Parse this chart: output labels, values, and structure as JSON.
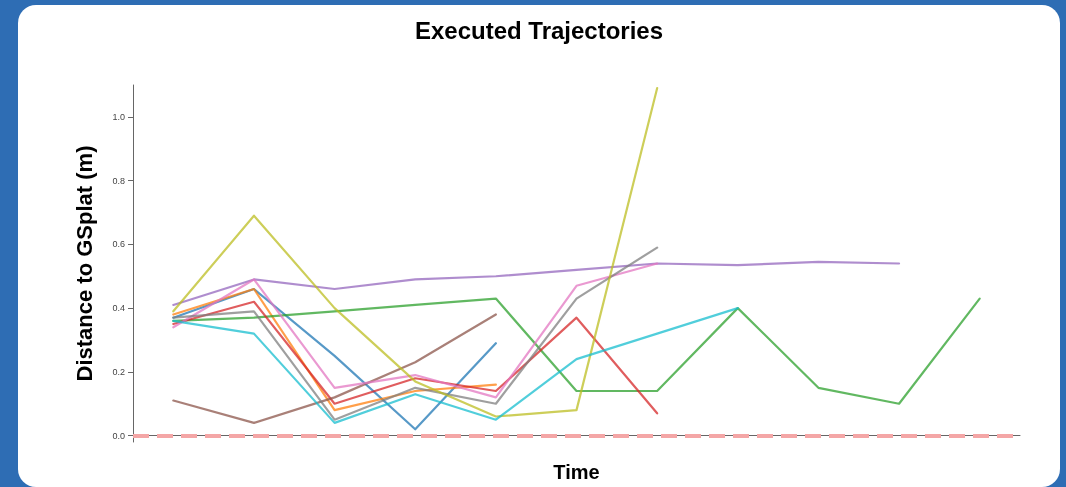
{
  "chart_data": {
    "type": "line",
    "title": "Executed Trajectories",
    "xlabel": "Time",
    "ylabel": "Distance to GSplat (m)",
    "categories": [
      null,
      null,
      null,
      null,
      null,
      null,
      null,
      null,
      null,
      null,
      null
    ],
    "series": [
      {
        "color": "#1f77b4",
        "values": [
          0.37,
          0.46,
          0.25,
          0.02,
          0.29,
          null,
          null,
          null,
          null,
          null,
          null
        ]
      },
      {
        "color": "#ff7f0e",
        "values": [
          0.38,
          0.46,
          0.08,
          0.14,
          0.16,
          null,
          null,
          null,
          null,
          null,
          null
        ]
      },
      {
        "color": "#2ca02c",
        "values": [
          0.36,
          0.37,
          0.39,
          0.41,
          0.43,
          0.14,
          0.14,
          0.4,
          0.15,
          0.1,
          0.43
        ]
      },
      {
        "color": "#d62728",
        "values": [
          0.35,
          0.42,
          0.1,
          0.18,
          0.14,
          0.37,
          0.07,
          null,
          null,
          null,
          null
        ]
      },
      {
        "color": "#9467bd",
        "values": [
          0.41,
          0.49,
          0.46,
          0.49,
          0.5,
          0.52,
          0.54,
          0.535,
          0.545,
          0.54,
          null
        ]
      },
      {
        "color": "#8c564b",
        "values": [
          0.11,
          0.04,
          0.12,
          0.23,
          0.38,
          null,
          null,
          null,
          null,
          null,
          null
        ]
      },
      {
        "color": "#e377c2",
        "values": [
          0.34,
          0.49,
          0.15,
          0.19,
          0.12,
          0.47,
          0.54,
          null,
          null,
          null,
          null
        ]
      },
      {
        "color": "#7f7f7f",
        "values": [
          0.37,
          0.39,
          0.05,
          0.15,
          0.1,
          0.43,
          0.59,
          null,
          null,
          null,
          null
        ]
      },
      {
        "color": "#bcbd22",
        "values": [
          0.39,
          0.69,
          0.4,
          0.17,
          0.06,
          0.08,
          1.09,
          null,
          null,
          null,
          null
        ]
      },
      {
        "color": "#17becf",
        "values": [
          0.36,
          0.32,
          0.04,
          0.13,
          0.05,
          0.24,
          0.32,
          0.4,
          null,
          null,
          null
        ]
      }
    ],
    "ylim": [
      -0.02,
      1.1
    ],
    "yticks": [
      {
        "value": 0,
        "label": "0.0"
      },
      {
        "value": 0.2,
        "label": "0.2"
      },
      {
        "value": 0.4,
        "label": "0.4"
      },
      {
        "value": 0.6,
        "label": "0.6"
      },
      {
        "value": 0.8,
        "label": "0.8"
      },
      {
        "value": 1,
        "label": "1.0"
      }
    ],
    "ref_lines": [
      {
        "axis": "y",
        "value": 0,
        "color": "#f4a6a6",
        "line_style": "dashed"
      }
    ],
    "grid": false,
    "tick_labels": "y"
  }
}
